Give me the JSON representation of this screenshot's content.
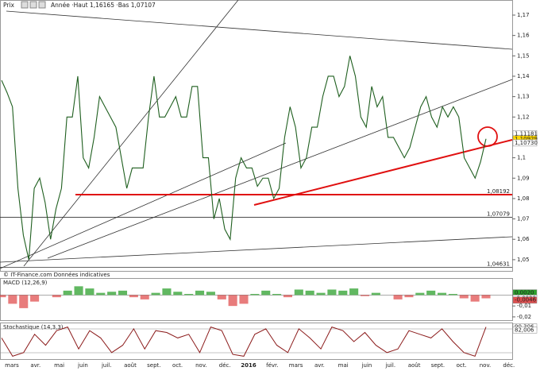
{
  "source": "© IT-Finance.com Données indicatives",
  "x_axis_labels": [
    "mars",
    "avr.",
    "mai",
    "juin",
    "juil.",
    "août",
    "sept.",
    "oct.",
    "nov.",
    "déc.",
    "2016",
    "févr.",
    "mars",
    "avr.",
    "mai",
    "juin",
    "juil.",
    "août",
    "sept.",
    "oct.",
    "nov.",
    "déc."
  ],
  "chart_data": [
    {
      "type": "line",
      "title": "Prix",
      "subtitle": "Année ·Haut 1,16165 ·Bas 1,07107",
      "color": "#1f5f1f",
      "values": [
        1.138,
        1.132,
        1.125,
        1.085,
        1.062,
        1.05,
        1.085,
        1.09,
        1.078,
        1.06,
        1.075,
        1.085,
        1.12,
        1.12,
        1.14,
        1.1,
        1.095,
        1.11,
        1.13,
        1.125,
        1.12,
        1.115,
        1.1,
        1.085,
        1.095,
        1.095,
        1.095,
        1.12,
        1.14,
        1.12,
        1.12,
        1.125,
        1.13,
        1.12,
        1.12,
        1.135,
        1.135,
        1.1,
        1.1,
        1.07,
        1.08,
        1.065,
        1.06,
        1.09,
        1.1,
        1.095,
        1.095,
        1.086,
        1.09,
        1.09,
        1.08,
        1.085,
        1.11,
        1.125,
        1.115,
        1.095,
        1.1,
        1.115,
        1.115,
        1.13,
        1.14,
        1.14,
        1.13,
        1.135,
        1.15,
        1.14,
        1.12,
        1.115,
        1.135,
        1.125,
        1.13,
        1.11,
        1.11,
        1.105,
        1.1,
        1.105,
        1.115,
        1.125,
        1.13,
        1.12,
        1.115,
        1.125,
        1.12,
        1.125,
        1.12,
        1.1,
        1.095,
        1.09,
        1.098,
        1.10929
      ],
      "ylim": [
        1.0445,
        1.1774
      ],
      "yticks": [
        {
          "value": 1.17,
          "label": "1,17"
        },
        {
          "value": 1.16,
          "label": "1,16"
        },
        {
          "value": 1.15,
          "label": "1,15"
        },
        {
          "value": 1.14,
          "label": "1,14"
        },
        {
          "value": 1.13,
          "label": "1,13"
        },
        {
          "value": 1.12,
          "label": "1,12"
        },
        {
          "value": 1.11,
          "label": "1,11"
        },
        {
          "value": 1.1,
          "label": "1,1"
        },
        {
          "value": 1.09,
          "label": "1,09"
        },
        {
          "value": 1.08,
          "label": "1,08"
        },
        {
          "value": 1.07,
          "label": "1,07"
        },
        {
          "value": 1.06,
          "label": "1,06"
        },
        {
          "value": 1.05,
          "label": "1,05"
        }
      ],
      "levels": [
        {
          "value": 1.08192,
          "label": "1,08192",
          "color": "#e01010"
        },
        {
          "value": 1.07079,
          "label": "1,07079",
          "color": "#333333"
        },
        {
          "value": 1.04631,
          "label": "1,04631",
          "color": "#333333"
        }
      ],
      "price_labels": [
        {
          "value": 1.11181,
          "label": "1,11181",
          "color": "#ffffff"
        },
        {
          "value": 1.10929,
          "label": "1,10929",
          "color": "#ffd800"
        },
        {
          "value": 1.1073,
          "label": "1,10730",
          "color": "#ffffff"
        }
      ]
    },
    {
      "type": "bar",
      "title": "MACD (12,26,9)",
      "up_color": "#2ca02c",
      "down_color": "#e05050",
      "values": [
        -0.002,
        -0.008,
        -0.012,
        -0.006,
        0.0,
        -0.002,
        0.004,
        0.008,
        0.006,
        0.002,
        0.003,
        0.004,
        -0.002,
        -0.004,
        0.002,
        0.006,
        0.003,
        0.001,
        0.004,
        0.003,
        -0.004,
        -0.01,
        -0.008,
        0.001,
        0.004,
        0.001,
        -0.002,
        0.005,
        0.004,
        0.002,
        0.005,
        0.004,
        0.006,
        -0.001,
        0.002,
        0.0,
        -0.004,
        -0.002,
        0.002,
        0.004,
        0.002,
        0.001,
        -0.003,
        -0.006,
        -0.003
      ],
      "ylim": [
        -0.0237,
        0.0148
      ],
      "yticks": [
        0,
        {
          "value": -0.01,
          "label": "-0,01"
        },
        {
          "value": -0.02,
          "label": "-0,02"
        }
      ],
      "price_labels": [
        {
          "value": 0.002,
          "label": "0,0020",
          "color": "#2ca02c"
        },
        {
          "value": -0.0029,
          "label": "-0,0029",
          "color": "#ffffff"
        },
        {
          "value": -0.0046,
          "label": "-0,0046",
          "color": "#e05050"
        }
      ]
    },
    {
      "type": "line",
      "title": "Stochastique (14,3,3)",
      "color": "#8b1a1a",
      "values": [
        60,
        10,
        20,
        70,
        40,
        80,
        90,
        30,
        80,
        60,
        20,
        40,
        85,
        30,
        80,
        75,
        60,
        70,
        20,
        90,
        80,
        15,
        10,
        70,
        85,
        40,
        20,
        85,
        60,
        30,
        90,
        80,
        50,
        75,
        40,
        20,
        30,
        80,
        70,
        60,
        85,
        50,
        20,
        10,
        90
      ],
      "ylim": [
        0,
        100
      ],
      "price_labels": [
        {
          "value": 90.306,
          "label": "90,306",
          "color": "#ffffff"
        },
        {
          "value": 82.006,
          "label": "82,006",
          "color": "#ffffff"
        }
      ]
    }
  ]
}
